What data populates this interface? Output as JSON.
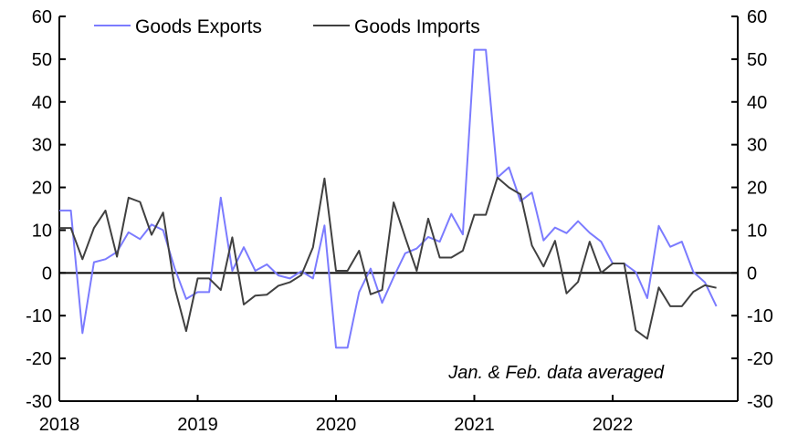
{
  "chart_data": {
    "type": "line",
    "title": "",
    "xlabel": "",
    "ylabel": "",
    "ylim": [
      -30,
      60
    ],
    "yticks": [
      -30,
      -20,
      -10,
      0,
      10,
      20,
      30,
      40,
      50,
      60
    ],
    "ytick_labels": [
      "-30",
      "-20",
      "-10",
      "0",
      "10",
      "20",
      "30",
      "40",
      "50",
      "60"
    ],
    "xtick_labels": [
      "2018",
      "2019",
      "2020",
      "2021",
      "2022"
    ],
    "x_start": "2018-01",
    "frequency": "monthly",
    "legend_position": "top-left",
    "annotation": "Jan. & Feb. data averaged",
    "series": [
      {
        "name": "Goods Exports",
        "color": "#7b7bff",
        "values": [
          14.6,
          14.6,
          -14.1,
          2.5,
          3.2,
          4.9,
          9.5,
          7.9,
          11.3,
          10.0,
          1.1,
          -6.1,
          -4.5,
          -4.5,
          17.6,
          0.5,
          6.0,
          0.5,
          2.0,
          -0.6,
          -1.3,
          0.4,
          -1.3,
          11.1,
          -17.5,
          -17.5,
          -4.5,
          1.0,
          -7.0,
          -1.0,
          4.6,
          5.7,
          8.4,
          7.3,
          13.8,
          9.0,
          52.2,
          52.2,
          22.3,
          24.7,
          16.8,
          18.8,
          7.6,
          10.6,
          9.3,
          12.1,
          9.4,
          7.3,
          2.2,
          2.2,
          0.2,
          -5.9,
          11.0,
          6.1,
          7.3,
          0.2,
          -2.2,
          -7.8
        ]
      },
      {
        "name": "Goods Imports",
        "color": "#404040",
        "values": [
          10.5,
          10.5,
          3.2,
          10.5,
          14.6,
          3.8,
          17.6,
          16.6,
          8.9,
          14.1,
          -3.4,
          -13.6,
          -1.3,
          -1.3,
          -4.0,
          8.3,
          -7.4,
          -5.3,
          -5.1,
          -3.0,
          -2.2,
          -0.5,
          6.0,
          22.1,
          0.5,
          0.5,
          5.2,
          -5.0,
          -4.0,
          16.5,
          8.3,
          0.5,
          12.7,
          3.6,
          3.6,
          5.2,
          13.6,
          13.6,
          22.3,
          20.0,
          18.4,
          6.4,
          1.5,
          7.5,
          -4.8,
          -2.1,
          7.3,
          0.0,
          2.2,
          2.2,
          -13.4,
          -15.4,
          -3.4,
          -7.8,
          -7.8,
          -4.4,
          -2.9,
          -3.5
        ]
      }
    ]
  }
}
